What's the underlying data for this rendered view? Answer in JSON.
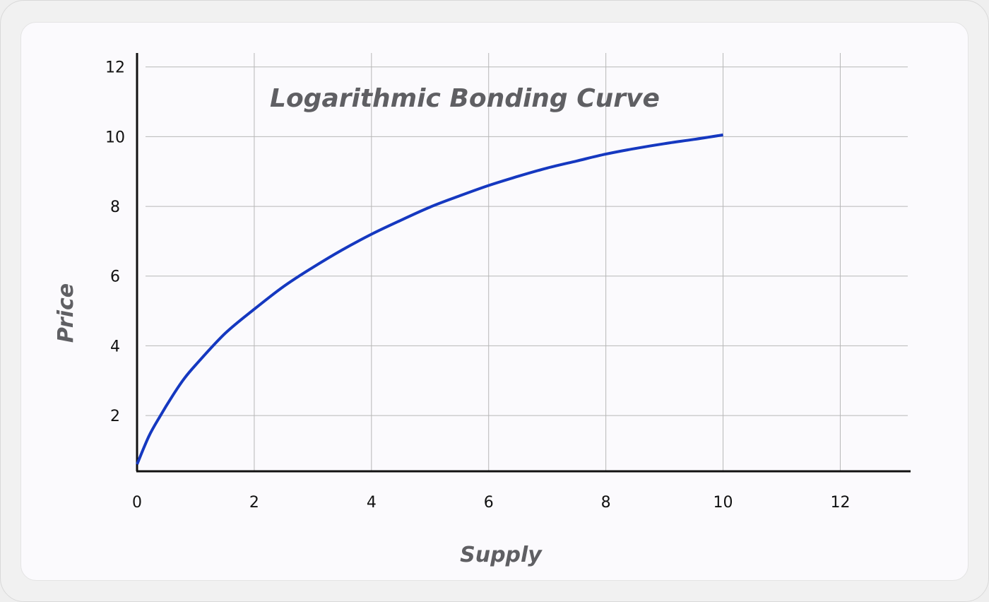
{
  "chart_data": {
    "type": "line",
    "title": "Logarithmic Bonding Curve",
    "xlabel": "Supply",
    "ylabel": "Price",
    "xlim": [
      0,
      13.2
    ],
    "ylim": [
      0.4,
      12.4
    ],
    "x_ticks": [
      "0",
      "2",
      "4",
      "6",
      "8",
      "10",
      "12"
    ],
    "y_ticks": [
      "2",
      "4",
      "6",
      "8",
      "10",
      "12"
    ],
    "grid": true,
    "series": [
      {
        "color": "#1538c0",
        "x": [
          0,
          0.2,
          0.4,
          0.6,
          0.8,
          1,
          1.5,
          2,
          2.5,
          3,
          3.5,
          4,
          4.5,
          5,
          5.5,
          6,
          6.5,
          7,
          7.5,
          8,
          8.5,
          9,
          9.5,
          10
        ],
        "y": [
          0.6,
          1.4,
          2.0,
          2.55,
          3.05,
          3.45,
          4.35,
          5.05,
          5.7,
          6.25,
          6.75,
          7.2,
          7.6,
          7.98,
          8.3,
          8.6,
          8.86,
          9.1,
          9.3,
          9.5,
          9.66,
          9.8,
          9.92,
          10.05
        ]
      }
    ]
  }
}
